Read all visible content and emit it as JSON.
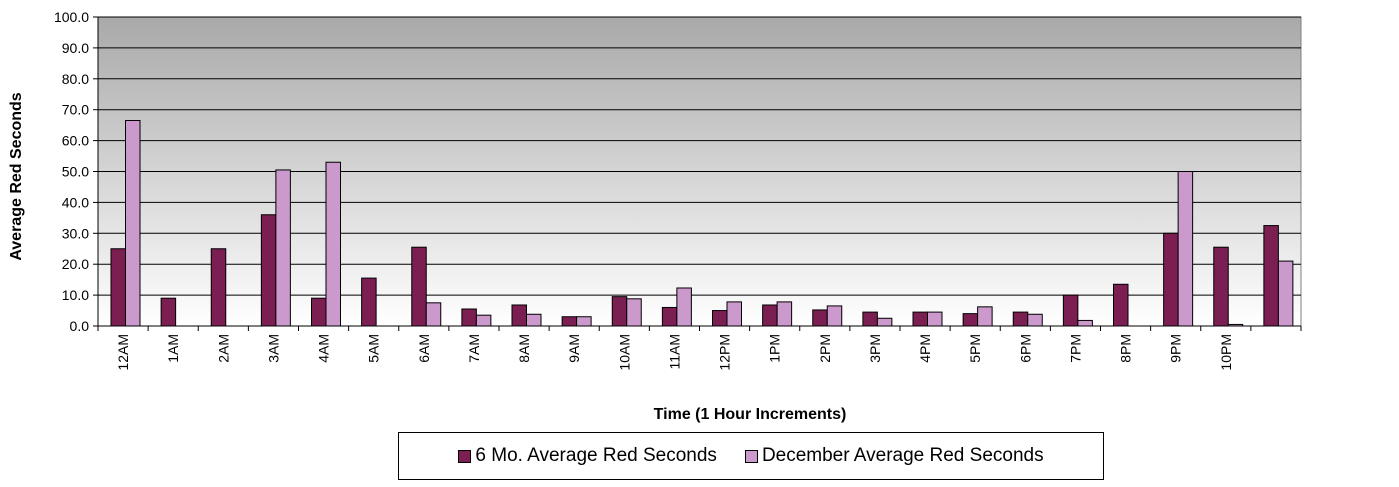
{
  "colors": {
    "series1": "#7b1f52",
    "series2": "#cc99cc",
    "plot_top": "#a9a9a9",
    "plot_bottom": "#ffffff",
    "gridline": "#000000"
  },
  "chart_data": {
    "type": "bar",
    "title": "",
    "xlabel": "Time (1 Hour Increments)",
    "ylabel": "Average Red Seconds",
    "ylim": [
      0,
      100
    ],
    "yticks": [
      "0.0",
      "10.0",
      "20.0",
      "30.0",
      "40.0",
      "50.0",
      "60.0",
      "70.0",
      "80.0",
      "90.0",
      "100.0"
    ],
    "grid": true,
    "legend_position": "bottom",
    "categories": [
      "12AM",
      "1AM",
      "2AM",
      "3AM",
      "4AM",
      "5AM",
      "6AM",
      "7AM",
      "8AM",
      "9AM",
      "10AM",
      "11AM",
      "12PM",
      "1PM",
      "2PM",
      "3PM",
      "4PM",
      "5PM",
      "6PM",
      "7PM",
      "8PM",
      "9PM",
      "10PM",
      ""
    ],
    "series": [
      {
        "name": "6 Mo. Average Red Seconds",
        "values": [
          25.0,
          9.0,
          25.0,
          36.0,
          9.0,
          15.5,
          25.5,
          5.5,
          6.8,
          3.0,
          9.5,
          6.0,
          5.0,
          6.8,
          5.2,
          4.5,
          4.5,
          4.0,
          4.5,
          10.0,
          13.5,
          30.0,
          25.5,
          32.5
        ]
      },
      {
        "name": "December Average Red Seconds",
        "values": [
          66.5,
          0,
          0,
          50.5,
          53.0,
          0,
          7.5,
          3.5,
          3.8,
          3.0,
          8.8,
          12.3,
          7.8,
          7.8,
          6.5,
          2.5,
          4.5,
          6.2,
          3.8,
          1.8,
          0,
          50.0,
          0.5,
          21.0
        ]
      }
    ]
  }
}
